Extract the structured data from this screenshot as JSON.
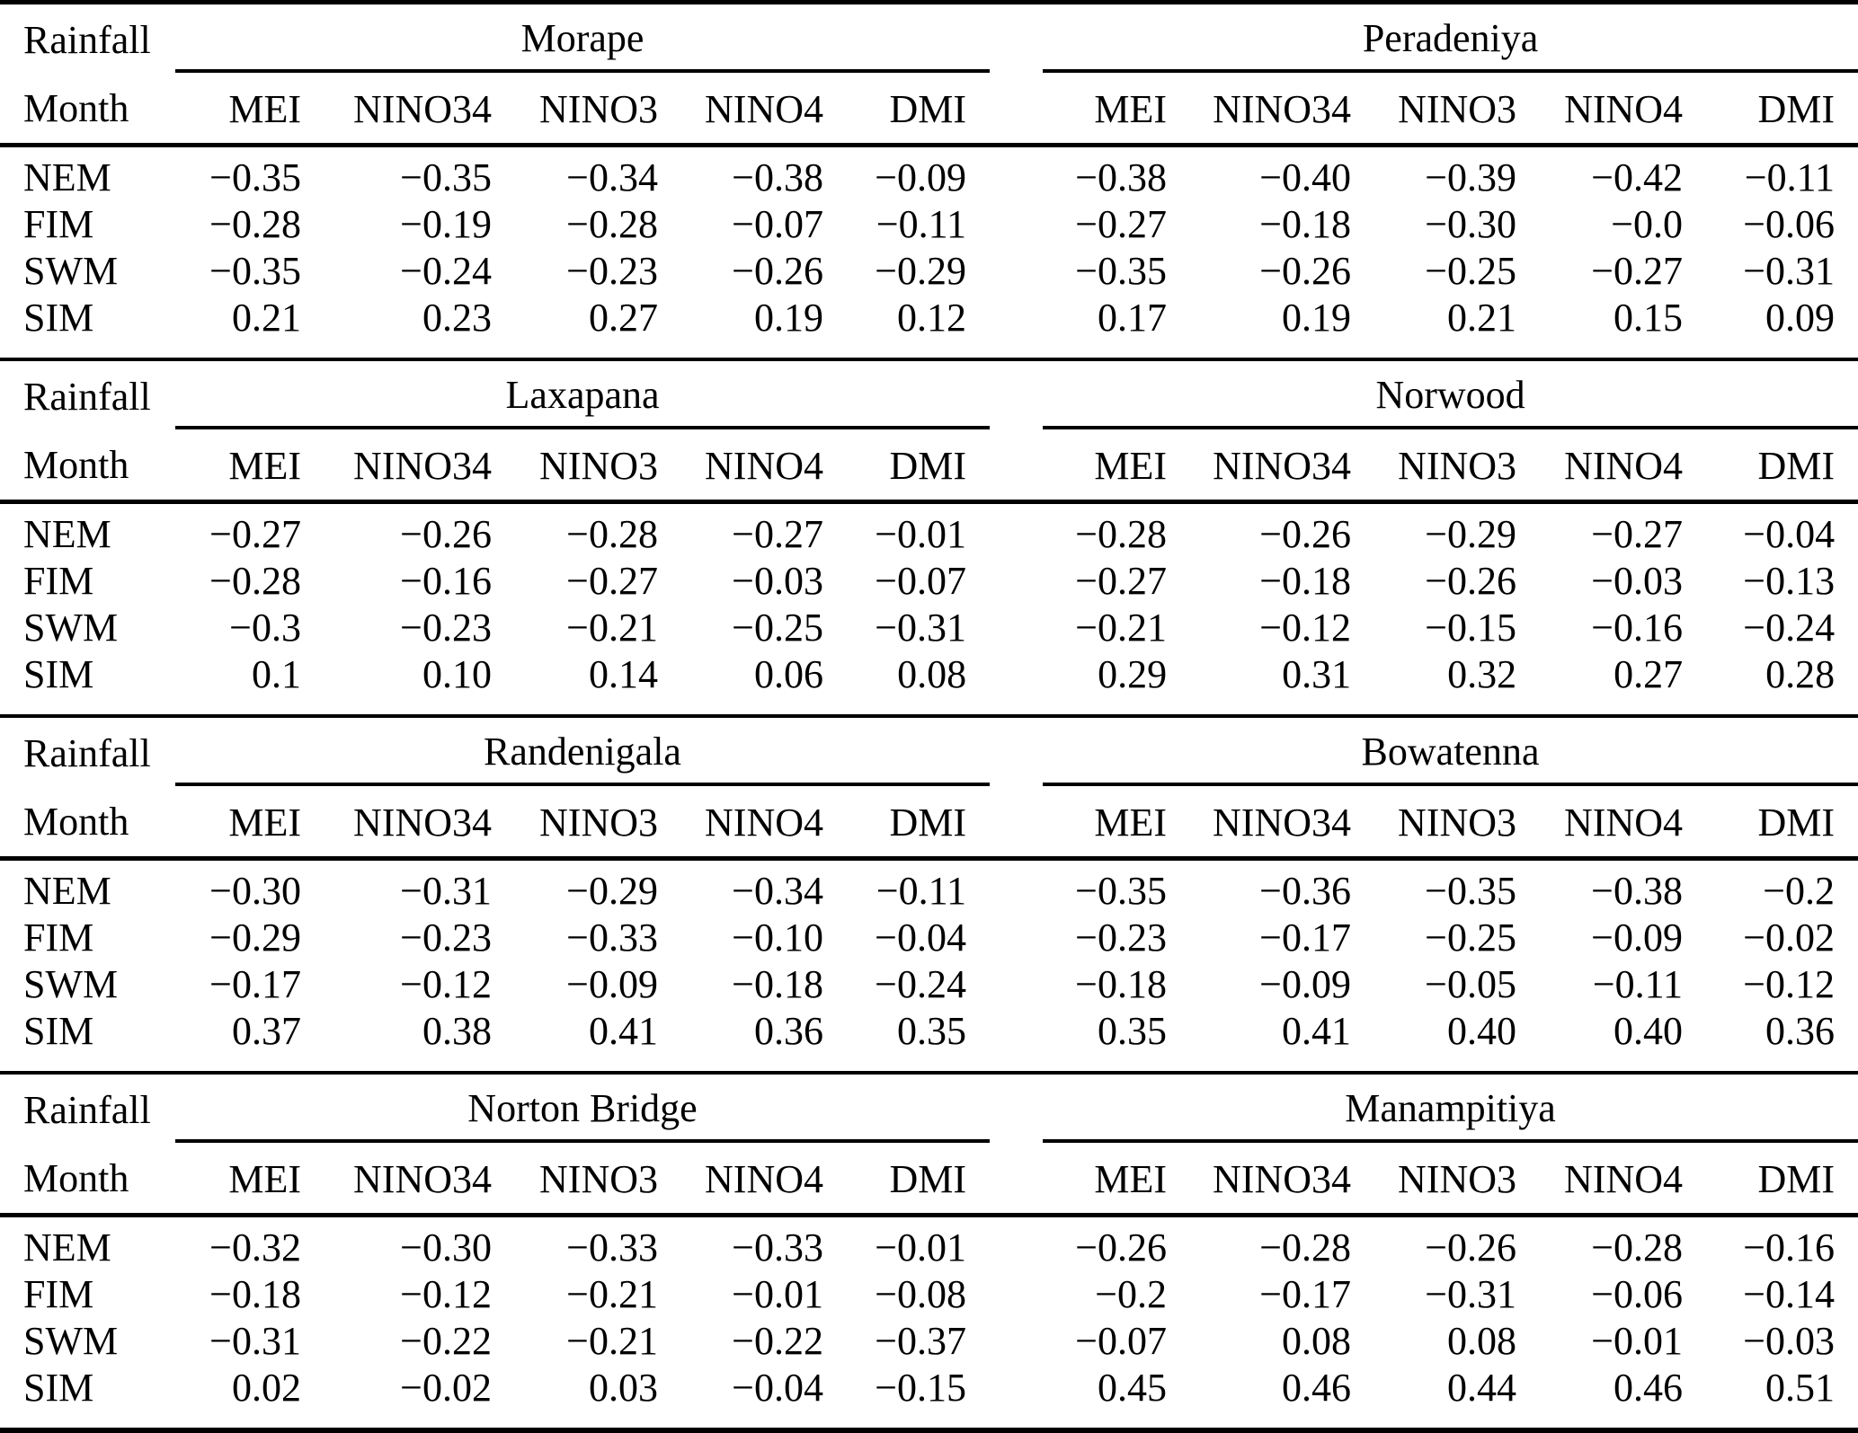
{
  "row_header": {
    "title": "Rainfall",
    "subtitle": "Month"
  },
  "columns": [
    "MEI",
    "NINO34",
    "NINO3",
    "NINO4",
    "DMI"
  ],
  "month_labels": [
    "NEM",
    "FIM",
    "SWM",
    "SIM"
  ],
  "blocks": [
    {
      "stations": [
        {
          "name": "Morape",
          "rows": [
            [
              "−0.35",
              "−0.35",
              "−0.34",
              "−0.38",
              "−0.09"
            ],
            [
              "−0.28",
              "−0.19",
              "−0.28",
              "−0.07",
              "−0.11"
            ],
            [
              "−0.35",
              "−0.24",
              "−0.23",
              "−0.26",
              "−0.29"
            ],
            [
              "0.21",
              "0.23",
              "0.27",
              "0.19",
              "0.12"
            ]
          ]
        },
        {
          "name": "Peradeniya",
          "rows": [
            [
              "−0.38",
              "−0.40",
              "−0.39",
              "−0.42",
              "−0.11"
            ],
            [
              "−0.27",
              "−0.18",
              "−0.30",
              "−0.0",
              "−0.06"
            ],
            [
              "−0.35",
              "−0.26",
              "−0.25",
              "−0.27",
              "−0.31"
            ],
            [
              "0.17",
              "0.19",
              "0.21",
              "0.15",
              "0.09"
            ]
          ]
        }
      ]
    },
    {
      "stations": [
        {
          "name": "Laxapana",
          "rows": [
            [
              "−0.27",
              "−0.26",
              "−0.28",
              "−0.27",
              "−0.01"
            ],
            [
              "−0.28",
              "−0.16",
              "−0.27",
              "−0.03",
              "−0.07"
            ],
            [
              "−0.3",
              "−0.23",
              "−0.21",
              "−0.25",
              "−0.31"
            ],
            [
              "0.1",
              "0.10",
              "0.14",
              "0.06",
              "0.08"
            ]
          ]
        },
        {
          "name": "Norwood",
          "rows": [
            [
              "−0.28",
              "−0.26",
              "−0.29",
              "−0.27",
              "−0.04"
            ],
            [
              "−0.27",
              "−0.18",
              "−0.26",
              "−0.03",
              "−0.13"
            ],
            [
              "−0.21",
              "−0.12",
              "−0.15",
              "−0.16",
              "−0.24"
            ],
            [
              "0.29",
              "0.31",
              "0.32",
              "0.27",
              "0.28"
            ]
          ]
        }
      ]
    },
    {
      "stations": [
        {
          "name": "Randenigala",
          "rows": [
            [
              "−0.30",
              "−0.31",
              "−0.29",
              "−0.34",
              "−0.11"
            ],
            [
              "−0.29",
              "−0.23",
              "−0.33",
              "−0.10",
              "−0.04"
            ],
            [
              "−0.17",
              "−0.12",
              "−0.09",
              "−0.18",
              "−0.24"
            ],
            [
              "0.37",
              "0.38",
              "0.41",
              "0.36",
              "0.35"
            ]
          ]
        },
        {
          "name": "Bowatenna",
          "rows": [
            [
              "−0.35",
              "−0.36",
              "−0.35",
              "−0.38",
              "−0.2"
            ],
            [
              "−0.23",
              "−0.17",
              "−0.25",
              "−0.09",
              "−0.02"
            ],
            [
              "−0.18",
              "−0.09",
              "−0.05",
              "−0.11",
              "−0.12"
            ],
            [
              "0.35",
              "0.41",
              "0.40",
              "0.40",
              "0.36"
            ]
          ]
        }
      ]
    },
    {
      "stations": [
        {
          "name": "Norton Bridge",
          "rows": [
            [
              "−0.32",
              "−0.30",
              "−0.33",
              "−0.33",
              "−0.01"
            ],
            [
              "−0.18",
              "−0.12",
              "−0.21",
              "−0.01",
              "−0.08"
            ],
            [
              "−0.31",
              "−0.22",
              "−0.21",
              "−0.22",
              "−0.37"
            ],
            [
              "0.02",
              "−0.02",
              "0.03",
              "−0.04",
              "−0.15"
            ]
          ]
        },
        {
          "name": "Manampitiya",
          "rows": [
            [
              "−0.26",
              "−0.28",
              "−0.26",
              "−0.28",
              "−0.16"
            ],
            [
              "−0.2",
              "−0.17",
              "−0.31",
              "−0.06",
              "−0.14"
            ],
            [
              "−0.07",
              "0.08",
              "0.08",
              "−0.01",
              "−0.03"
            ],
            [
              "0.45",
              "0.46",
              "0.44",
              "0.46",
              "0.51"
            ]
          ]
        }
      ]
    }
  ]
}
